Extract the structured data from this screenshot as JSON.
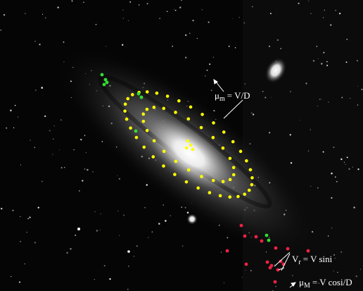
{
  "annotations": [
    {
      "symbol": "μ",
      "sub": "m",
      "rest": "= V/D"
    },
    {
      "symbol": "V",
      "sub": "r",
      "rest": "= V sini"
    },
    {
      "symbol": "μ",
      "sub": "M",
      "rest": "= V cosi/D"
    }
  ]
}
